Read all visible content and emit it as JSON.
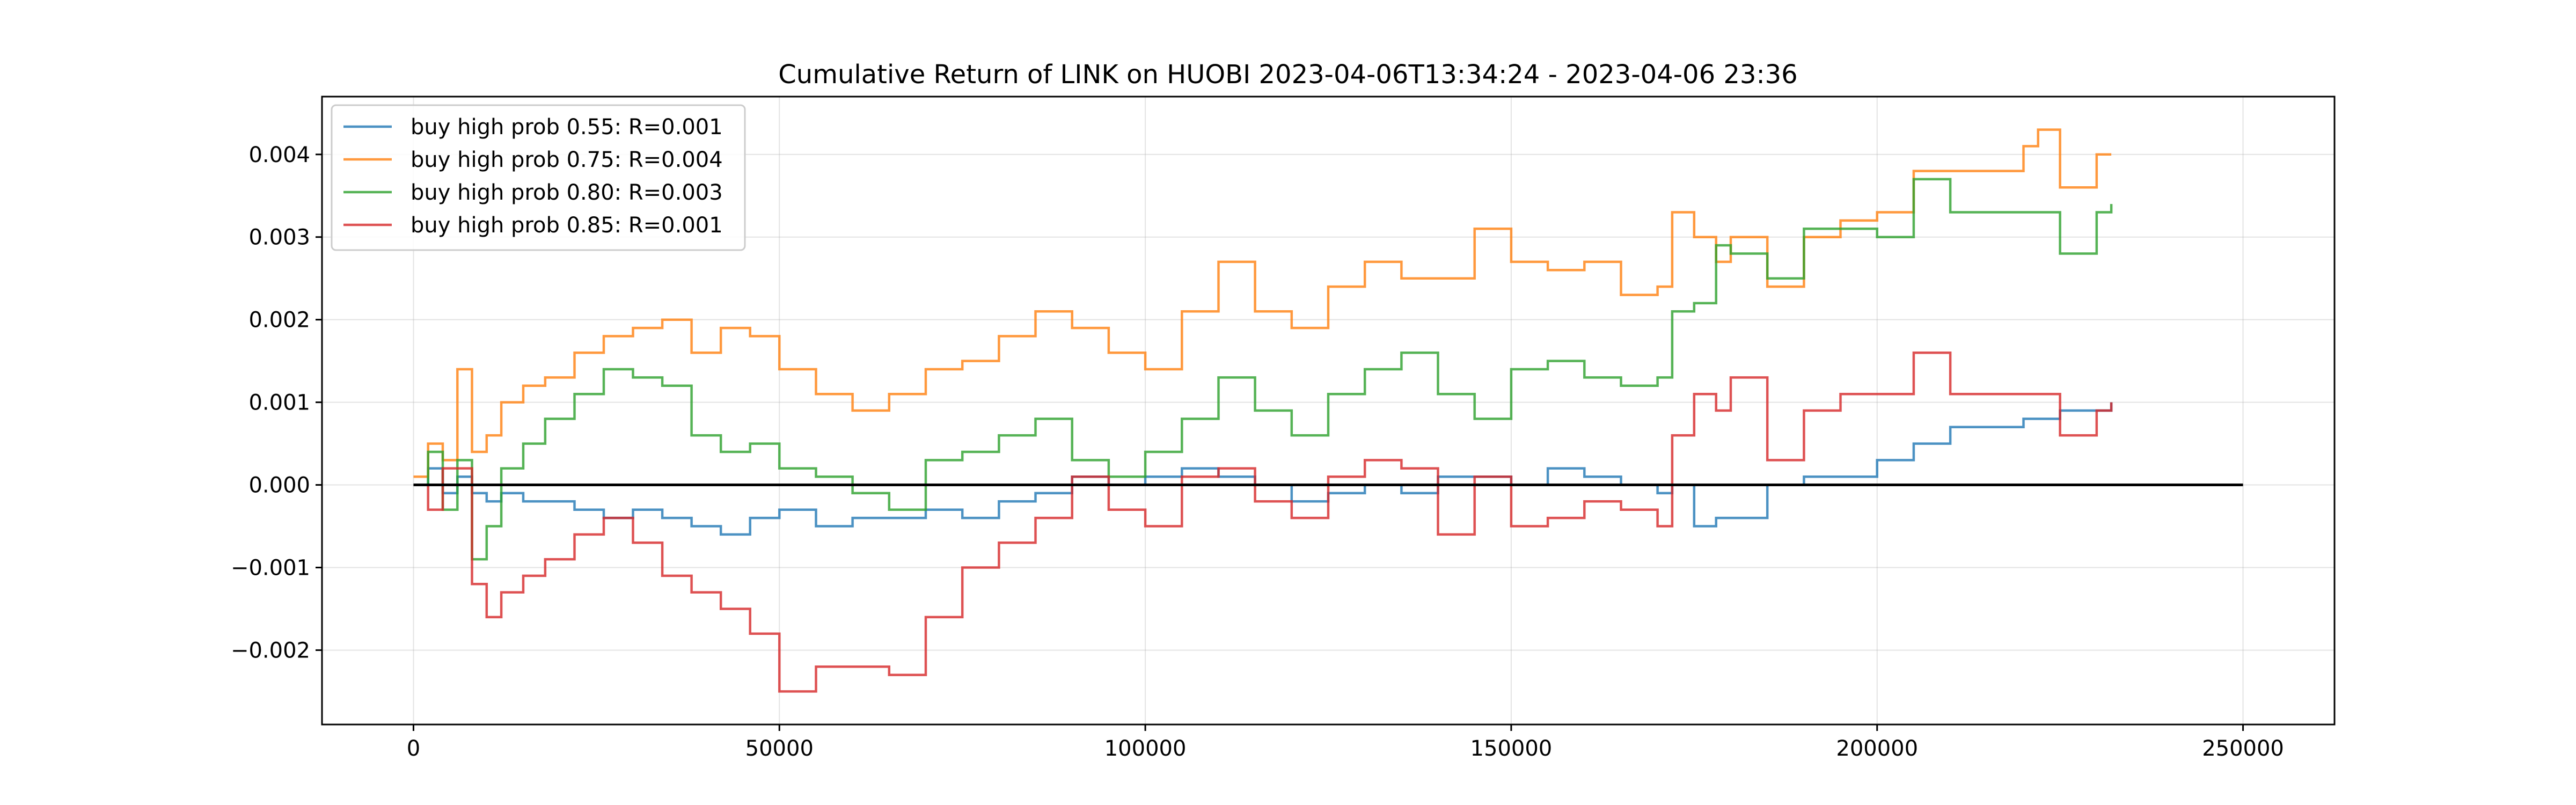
{
  "chart_data": {
    "type": "line",
    "title": "Cumulative Return of LINK on HUOBI 2023-04-06T13:34:24 - 2023-04-06 23:36",
    "xlabel": "",
    "ylabel": "",
    "xlim": [
      -12500,
      262500
    ],
    "ylim": [
      -0.0029,
      0.0047
    ],
    "xticks": [
      0,
      50000,
      100000,
      150000,
      200000,
      250000
    ],
    "xtick_labels": [
      "0",
      "50000",
      "100000",
      "150000",
      "200000",
      "250000"
    ],
    "yticks": [
      -0.002,
      -0.001,
      0.0,
      0.001,
      0.002,
      0.003,
      0.004
    ],
    "ytick_labels": [
      "−0.002",
      "−0.001",
      "0.000",
      "0.001",
      "0.002",
      "0.003",
      "0.004"
    ],
    "grid": true,
    "legend_position": "top-left",
    "baseline": {
      "value": 0.0,
      "x": [
        0,
        250000
      ],
      "color": "#000000"
    },
    "series": [
      {
        "name": "buy high prob 0.55: R=0.001",
        "color": "#1f77b4",
        "x": [
          0,
          2000,
          4000,
          6000,
          8000,
          10000,
          12000,
          15000,
          18000,
          22000,
          26000,
          30000,
          34000,
          38000,
          42000,
          46000,
          50000,
          55000,
          60000,
          65000,
          70000,
          75000,
          80000,
          85000,
          90000,
          95000,
          100000,
          105000,
          110000,
          115000,
          120000,
          125000,
          130000,
          135000,
          140000,
          145000,
          150000,
          155000,
          160000,
          165000,
          170000,
          172000,
          175000,
          178000,
          180000,
          185000,
          190000,
          195000,
          200000,
          205000,
          210000,
          215000,
          220000,
          225000,
          230000,
          232000
        ],
        "y": [
          0.0,
          0.0002,
          -0.0001,
          0.0001,
          -0.0001,
          -0.0002,
          -0.0001,
          -0.0002,
          -0.0002,
          -0.0003,
          -0.0004,
          -0.0003,
          -0.0004,
          -0.0005,
          -0.0006,
          -0.0004,
          -0.0003,
          -0.0005,
          -0.0004,
          -0.0004,
          -0.0003,
          -0.0004,
          -0.0002,
          -0.0001,
          0.0001,
          0.0,
          0.0001,
          0.0002,
          0.0001,
          0.0,
          -0.0002,
          -0.0001,
          0.0,
          -0.0001,
          0.0001,
          0.0001,
          0.0,
          0.0002,
          0.0001,
          0.0,
          -0.0001,
          0.0,
          -0.0005,
          -0.0004,
          -0.0004,
          0.0,
          0.0001,
          0.0001,
          0.0003,
          0.0005,
          0.0007,
          0.0007,
          0.0008,
          0.0009,
          0.0009,
          0.001
        ]
      },
      {
        "name": "buy high prob 0.75: R=0.004",
        "color": "#ff7f0e",
        "x": [
          0,
          2000,
          4000,
          6000,
          8000,
          10000,
          12000,
          15000,
          18000,
          22000,
          26000,
          30000,
          34000,
          38000,
          42000,
          46000,
          50000,
          55000,
          60000,
          65000,
          70000,
          75000,
          80000,
          85000,
          90000,
          95000,
          100000,
          105000,
          110000,
          115000,
          120000,
          125000,
          130000,
          135000,
          140000,
          145000,
          150000,
          155000,
          160000,
          165000,
          170000,
          172000,
          175000,
          178000,
          180000,
          185000,
          190000,
          195000,
          200000,
          205000,
          210000,
          215000,
          220000,
          222000,
          225000,
          230000,
          232000
        ],
        "y": [
          0.0001,
          0.0005,
          0.0003,
          0.0014,
          0.0004,
          0.0006,
          0.001,
          0.0012,
          0.0013,
          0.0016,
          0.0018,
          0.0019,
          0.002,
          0.0016,
          0.0019,
          0.0018,
          0.0014,
          0.0011,
          0.0009,
          0.0011,
          0.0014,
          0.0015,
          0.0018,
          0.0021,
          0.0019,
          0.0016,
          0.0014,
          0.0021,
          0.0027,
          0.0021,
          0.0019,
          0.0024,
          0.0027,
          0.0025,
          0.0025,
          0.0031,
          0.0027,
          0.0026,
          0.0027,
          0.0023,
          0.0024,
          0.0033,
          0.003,
          0.0027,
          0.003,
          0.0024,
          0.003,
          0.0032,
          0.0033,
          0.0038,
          0.0038,
          0.0038,
          0.0041,
          0.0043,
          0.0036,
          0.004,
          0.004
        ]
      },
      {
        "name": "buy high prob 0.80: R=0.003",
        "color": "#2ca02c",
        "x": [
          0,
          2000,
          4000,
          6000,
          8000,
          10000,
          12000,
          15000,
          18000,
          22000,
          26000,
          30000,
          34000,
          38000,
          42000,
          46000,
          50000,
          55000,
          60000,
          65000,
          70000,
          75000,
          80000,
          85000,
          90000,
          95000,
          100000,
          105000,
          110000,
          115000,
          120000,
          125000,
          130000,
          135000,
          140000,
          145000,
          150000,
          155000,
          160000,
          165000,
          170000,
          172000,
          175000,
          178000,
          180000,
          185000,
          190000,
          195000,
          200000,
          205000,
          210000,
          215000,
          220000,
          225000,
          230000,
          232000
        ],
        "y": [
          0.0,
          0.0004,
          -0.0003,
          0.0003,
          -0.0009,
          -0.0005,
          0.0002,
          0.0005,
          0.0008,
          0.0011,
          0.0014,
          0.0013,
          0.0012,
          0.0006,
          0.0004,
          0.0005,
          0.0002,
          0.0001,
          -0.0001,
          -0.0003,
          0.0003,
          0.0004,
          0.0006,
          0.0008,
          0.0003,
          0.0001,
          0.0004,
          0.0008,
          0.0013,
          0.0009,
          0.0006,
          0.0011,
          0.0014,
          0.0016,
          0.0011,
          0.0008,
          0.0014,
          0.0015,
          0.0013,
          0.0012,
          0.0013,
          0.0021,
          0.0022,
          0.0029,
          0.0028,
          0.0025,
          0.0031,
          0.0031,
          0.003,
          0.0037,
          0.0033,
          0.0033,
          0.0033,
          0.0028,
          0.0033,
          0.0034
        ]
      },
      {
        "name": "buy high prob 0.85: R=0.001",
        "color": "#d62728",
        "x": [
          0,
          2000,
          4000,
          6000,
          8000,
          10000,
          12000,
          15000,
          18000,
          22000,
          26000,
          30000,
          34000,
          38000,
          42000,
          46000,
          50000,
          55000,
          60000,
          65000,
          70000,
          75000,
          80000,
          85000,
          90000,
          95000,
          100000,
          105000,
          110000,
          115000,
          120000,
          125000,
          130000,
          135000,
          140000,
          145000,
          150000,
          155000,
          160000,
          165000,
          170000,
          172000,
          175000,
          178000,
          180000,
          185000,
          190000,
          195000,
          200000,
          205000,
          210000,
          215000,
          220000,
          225000,
          230000,
          232000
        ],
        "y": [
          0.0,
          -0.0003,
          0.0002,
          0.0002,
          -0.0012,
          -0.0016,
          -0.0013,
          -0.0011,
          -0.0009,
          -0.0006,
          -0.0004,
          -0.0007,
          -0.0011,
          -0.0013,
          -0.0015,
          -0.0018,
          -0.0025,
          -0.0022,
          -0.0022,
          -0.0023,
          -0.0016,
          -0.001,
          -0.0007,
          -0.0004,
          0.0001,
          -0.0003,
          -0.0005,
          0.0001,
          0.0002,
          -0.0002,
          -0.0004,
          0.0001,
          0.0003,
          0.0002,
          -0.0006,
          0.0001,
          -0.0005,
          -0.0004,
          -0.0002,
          -0.0003,
          -0.0005,
          0.0006,
          0.0011,
          0.0009,
          0.0013,
          0.0003,
          0.0009,
          0.0011,
          0.0011,
          0.0016,
          0.0011,
          0.0011,
          0.0011,
          0.0006,
          0.0009,
          0.001
        ]
      }
    ]
  }
}
